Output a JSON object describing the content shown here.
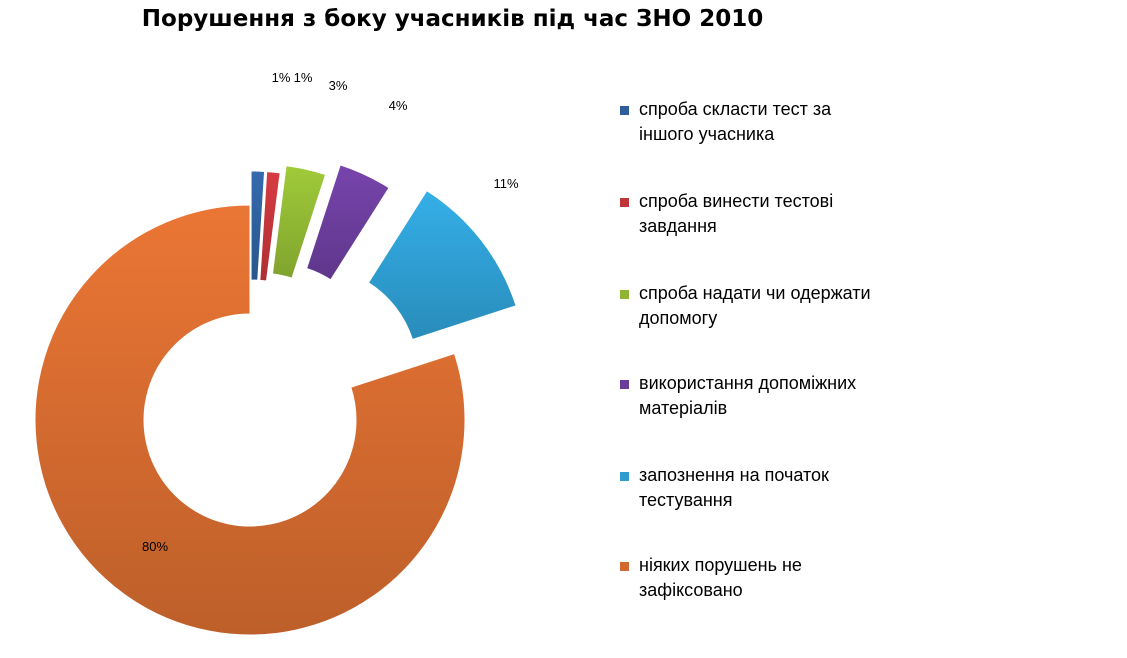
{
  "chart_data": {
    "type": "pie",
    "style": "exploded donut",
    "title": "Порушення з боку учасників під час ЗНО 2010",
    "legend_position": "right",
    "slices": [
      {
        "label": "спроба скласти тест за іншого учасника",
        "value": 1,
        "value_label": "1%",
        "color": "#2e5f9b"
      },
      {
        "label": "спроба винести тестові завдання",
        "value": 1,
        "value_label": "1%",
        "color": "#c0353a"
      },
      {
        "label": "спроба надати чи одержати допомогу",
        "value": 3,
        "value_label": "3%",
        "color": "#8fb533"
      },
      {
        "label": "використання допоміжних матеріалів",
        "value": 4,
        "value_label": "4%",
        "color": "#6a3d9a"
      },
      {
        "label": "запознення на початок тестування",
        "value": 11,
        "value_label": "11%",
        "color": "#2e9ccf"
      },
      {
        "label": "ніяких порушень не зафіксовано",
        "value": 80,
        "value_label": "80%",
        "color": "#d2692f"
      }
    ]
  }
}
